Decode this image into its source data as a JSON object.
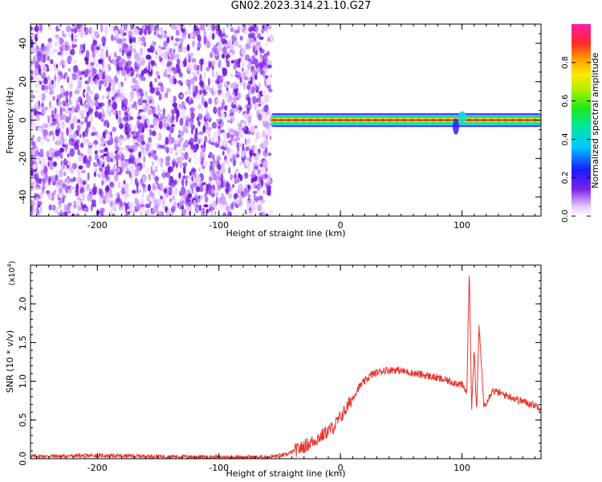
{
  "title": "GN02.2023.314.21.10.G27",
  "chart_data": [
    {
      "type": "heatmap",
      "title": "GN02.2023.314.21.10.G27",
      "xlabel": "Height of straight line (km)",
      "ylabel": "Frequency (Hz)",
      "xlim": [
        -255,
        165
      ],
      "ylim": [
        -50,
        50
      ],
      "xticks": [
        -200,
        -100,
        0,
        100
      ],
      "yticks": [
        -40,
        -20,
        0,
        20,
        40
      ],
      "noise_region_x": [
        -255,
        -57
      ],
      "signal_band": {
        "x": [
          -57,
          165
        ],
        "frequency": 0,
        "half_width": 3
      },
      "dip_near_x": 95,
      "colorbar": {
        "label": "Normalized spectral amplitude",
        "ticks": [
          0.0,
          0.2,
          0.4,
          0.6,
          0.8
        ],
        "range": [
          0,
          1
        ],
        "colormap": "rainbow (white→violet→blue→cyan→green→yellow→orange→red→magenta)"
      }
    },
    {
      "type": "line",
      "xlabel": "Height of straight line (km)",
      "ylabel": "SNR (10 * v/v)",
      "yscale_label": "(x10",
      "yscale_exp": "4",
      "yscale_close": ")",
      "xlim": [
        -255,
        165
      ],
      "ylim": [
        0,
        2.5
      ],
      "xticks": [
        -200,
        -100,
        0,
        100
      ],
      "yticks": [
        0.0,
        0.5,
        1.0,
        1.5,
        2.0
      ],
      "color": "#e8332d",
      "x": [
        -255,
        -200,
        -150,
        -100,
        -60,
        -45,
        -35,
        -25,
        -15,
        -5,
        5,
        15,
        25,
        35,
        45,
        55,
        65,
        75,
        85,
        95,
        100,
        104,
        106,
        108,
        110,
        112,
        114,
        118,
        125,
        140,
        150,
        160,
        165
      ],
      "y": [
        0.03,
        0.04,
        0.03,
        0.02,
        0.02,
        0.05,
        0.12,
        0.2,
        0.3,
        0.42,
        0.65,
        0.92,
        1.08,
        1.14,
        1.15,
        1.12,
        1.09,
        1.06,
        1.02,
        0.98,
        0.95,
        0.85,
        2.45,
        0.62,
        1.45,
        0.58,
        1.72,
        0.68,
        0.88,
        0.8,
        0.74,
        0.69,
        0.66
      ]
    }
  ]
}
